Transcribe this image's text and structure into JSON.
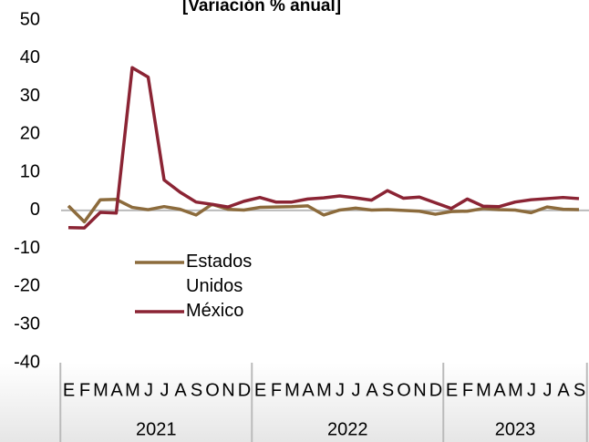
{
  "chart_data": {
    "type": "line",
    "title": "[Variación % anual]",
    "categories": [
      "E",
      "F",
      "M",
      "A",
      "M",
      "J",
      "J",
      "A",
      "S",
      "O",
      "N",
      "D",
      "E",
      "F",
      "M",
      "A",
      "M",
      "J",
      "J",
      "A",
      "S",
      "O",
      "N",
      "D",
      "E",
      "F",
      "M",
      "A",
      "M",
      "J",
      "J",
      "A",
      "S"
    ],
    "groups": [
      {
        "label": "2021",
        "span": 12
      },
      {
        "label": "2022",
        "span": 12
      },
      {
        "label": "2023",
        "span": 9
      }
    ],
    "series": [
      {
        "name": "Estados Unidos",
        "color": "#8c6b3c",
        "values": [
          1.2,
          -3,
          2.8,
          2.9,
          0.8,
          0.2,
          1.0,
          0.3,
          -1.2,
          1.6,
          0.3,
          0.1,
          0.8,
          0.9,
          1.0,
          1.2,
          -1.2,
          0.1,
          0.6,
          0.1,
          0.2,
          0.0,
          -0.2,
          -1.0,
          -0.3,
          -0.2,
          0.5,
          0.2,
          0.1,
          -0.6,
          0.9,
          0.3,
          0.2
        ]
      },
      {
        "name": "México",
        "color": "#8b2434",
        "values": [
          -4.5,
          -4.6,
          -0.5,
          -0.7,
          37.5,
          35,
          8,
          4.8,
          2.2,
          1.6,
          0.9,
          2.4,
          3.4,
          2.2,
          2.2,
          3,
          3.3,
          3.8,
          3.3,
          2.7,
          5.2,
          3.2,
          3.5,
          2.0,
          0.5,
          3.0,
          1.1,
          1.0,
          2.2,
          2.8,
          3.1,
          3.4,
          3.1
        ]
      }
    ],
    "ylim": [
      -40,
      50
    ],
    "yticks": [
      -40,
      -30,
      -20,
      -10,
      0,
      10,
      20,
      30,
      40,
      50
    ]
  }
}
